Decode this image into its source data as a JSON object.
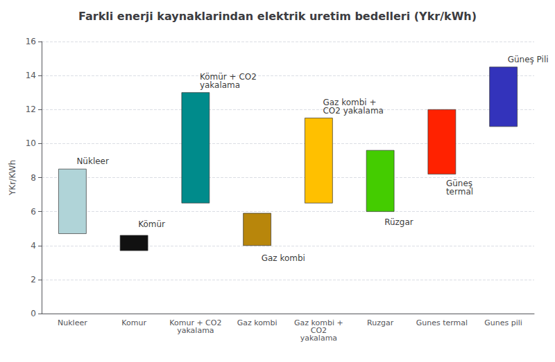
{
  "chart_data": {
    "type": "bar",
    "title": "Farkli enerji kaynaklarindan elektrik uretim bedelleri (Ykr/kWh)",
    "ylabel": "YKr/KWh",
    "categories": [
      "Nukleer",
      "Komur",
      "Komur + CO2\nyakalama",
      "Gaz kombi",
      "Gaz kombi +\nCO2\nyakalama",
      "Ruzgar",
      "Gunes termal",
      "Gunes pili"
    ],
    "values": [
      [
        4.7,
        8.5
      ],
      [
        3.7,
        4.6
      ],
      [
        6.5,
        13.0
      ],
      [
        4.0,
        5.9
      ],
      [
        6.5,
        11.5
      ],
      [
        6.0,
        9.6
      ],
      [
        8.2,
        12.0
      ],
      [
        11.0,
        14.5
      ]
    ],
    "colors": [
      "#b0d4d8",
      "#111111",
      "#008b8b",
      "#b8860b",
      "#ffc000",
      "#44cc00",
      "#ff2200",
      "#3333bb"
    ],
    "ylim": [
      0,
      16
    ],
    "yticks": [
      0,
      2,
      4,
      6,
      8,
      10,
      12,
      14,
      16
    ],
    "grid": true,
    "annotations": [
      {
        "text": "Nükleer",
        "x": 0,
        "y": 8.7
      },
      {
        "text": "Kömür",
        "x": 1,
        "y": 5.0
      },
      {
        "text": "Kömür + CO2\nyakalama",
        "x": 2,
        "y": 13.2
      },
      {
        "text": "Gaz kombi",
        "x": 3,
        "y": 3.5
      },
      {
        "text": "Gaz kombi +\nCO2 yakalama",
        "x": 4,
        "y": 11.7
      },
      {
        "text": "Rüzgar",
        "x": 5,
        "y": 5.6
      },
      {
        "text": "Güneş\ntermal",
        "x": 6,
        "y": 7.9
      },
      {
        "text": "Güneş Pili",
        "x": 7,
        "y": 14.7
      }
    ]
  }
}
